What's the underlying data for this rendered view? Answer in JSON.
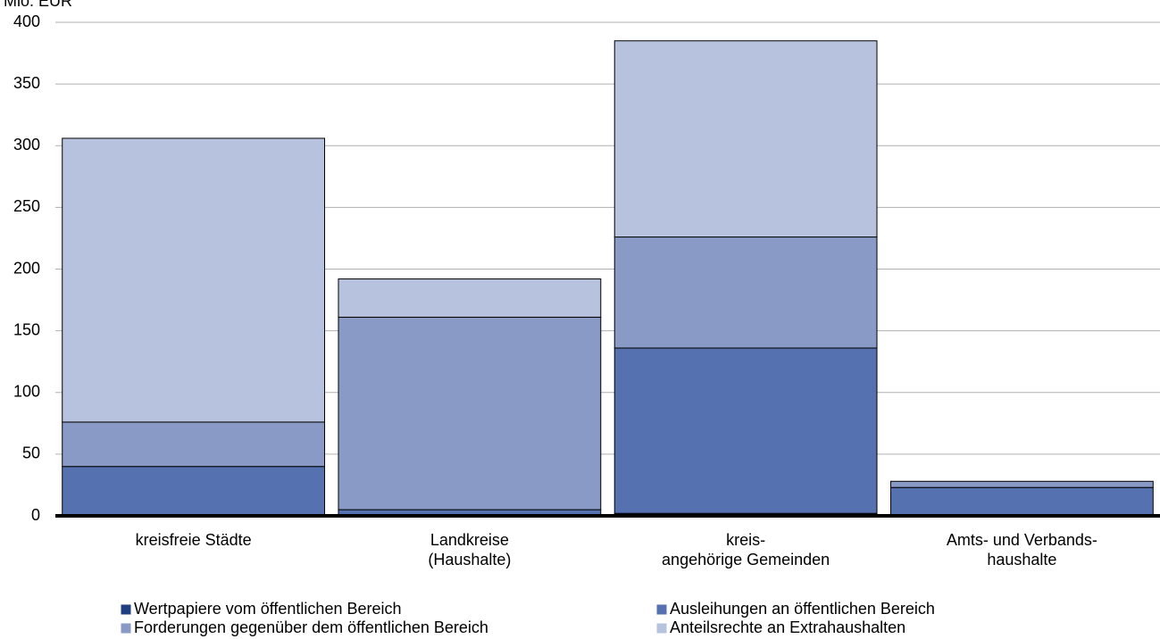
{
  "chart_data": {
    "type": "stacked-bar",
    "y_label": "Mio. EUR",
    "categories": [
      [
        "kreisfreie Städte"
      ],
      [
        "Landkreise",
        "(Haushalte)"
      ],
      [
        "kreis-",
        "angehörige Gemeinden"
      ],
      [
        "Amts- und Verbands-",
        "haushalte"
      ]
    ],
    "series": [
      {
        "name": "Wertpapiere vom öffentlichen Bereich",
        "color": "#203f80",
        "values": [
          1,
          1,
          2,
          0
        ]
      },
      {
        "name": "Ausleihungen an öffentlichen Bereich",
        "color": "#5571b0",
        "values": [
          39,
          4,
          134,
          23
        ]
      },
      {
        "name": "Forderungen gegenüber dem öffentlichen Bereich",
        "color": "#889ac5",
        "values": [
          36,
          156,
          90,
          5
        ]
      },
      {
        "name": "Anteilsrechte an Extrahaushalten",
        "color": "#b7c3de",
        "values": [
          230,
          31,
          159,
          0
        ]
      }
    ],
    "ylim": [
      0,
      400
    ],
    "yticks": [
      0,
      50,
      100,
      150,
      200,
      250,
      300,
      350,
      400
    ],
    "grid": true
  }
}
